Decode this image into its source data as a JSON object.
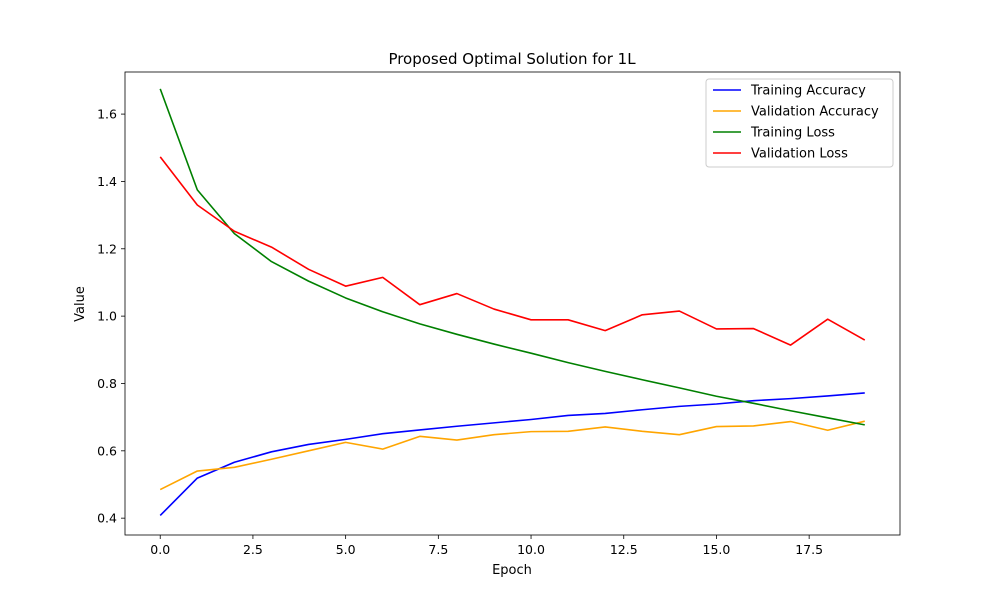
{
  "chart_data": {
    "type": "line",
    "title": "Proposed Optimal Solution for 1L",
    "xlabel": "Epoch",
    "ylabel": "Value",
    "xlim": [
      -0.95,
      19.95
    ],
    "ylim": [
      0.35,
      1.725
    ],
    "xticks": [
      0.0,
      2.5,
      5.0,
      7.5,
      10.0,
      12.5,
      15.0,
      17.5
    ],
    "xtick_labels": [
      "0.0",
      "2.5",
      "5.0",
      "7.5",
      "10.0",
      "12.5",
      "15.0",
      "17.5"
    ],
    "yticks": [
      0.4,
      0.6,
      0.8,
      1.0,
      1.2,
      1.4,
      1.6
    ],
    "ytick_labels": [
      "0.4",
      "0.6",
      "0.8",
      "1.0",
      "1.2",
      "1.4",
      "1.6"
    ],
    "grid": false,
    "legend_position": "top-right",
    "x": [
      0,
      1,
      2,
      3,
      4,
      5,
      6,
      7,
      8,
      9,
      10,
      11,
      12,
      13,
      14,
      15,
      16,
      17,
      18,
      19
    ],
    "series": [
      {
        "name": "Training Accuracy",
        "color": "#0000ff",
        "values": [
          0.408,
          0.519,
          0.566,
          0.597,
          0.619,
          0.634,
          0.651,
          0.662,
          0.673,
          0.683,
          0.693,
          0.705,
          0.711,
          0.722,
          0.732,
          0.739,
          0.749,
          0.755,
          0.763,
          0.772
        ]
      },
      {
        "name": "Validation Accuracy",
        "color": "#ffa500",
        "values": [
          0.485,
          0.54,
          0.551,
          0.575,
          0.6,
          0.625,
          0.605,
          0.643,
          0.632,
          0.648,
          0.657,
          0.658,
          0.671,
          0.658,
          0.648,
          0.672,
          0.674,
          0.687,
          0.661,
          0.688
        ]
      },
      {
        "name": "Training Loss",
        "color": "#008000",
        "values": [
          1.675,
          1.375,
          1.245,
          1.162,
          1.104,
          1.054,
          1.013,
          0.977,
          0.946,
          0.917,
          0.89,
          0.862,
          0.836,
          0.811,
          0.787,
          0.762,
          0.741,
          0.719,
          0.698,
          0.677
        ]
      },
      {
        "name": "Validation Loss",
        "color": "#ff0000",
        "values": [
          1.473,
          1.33,
          1.252,
          1.205,
          1.139,
          1.089,
          1.115,
          1.034,
          1.067,
          1.021,
          0.989,
          0.989,
          0.957,
          1.004,
          1.015,
          0.962,
          0.963,
          0.914,
          0.991,
          0.929
        ]
      }
    ]
  }
}
